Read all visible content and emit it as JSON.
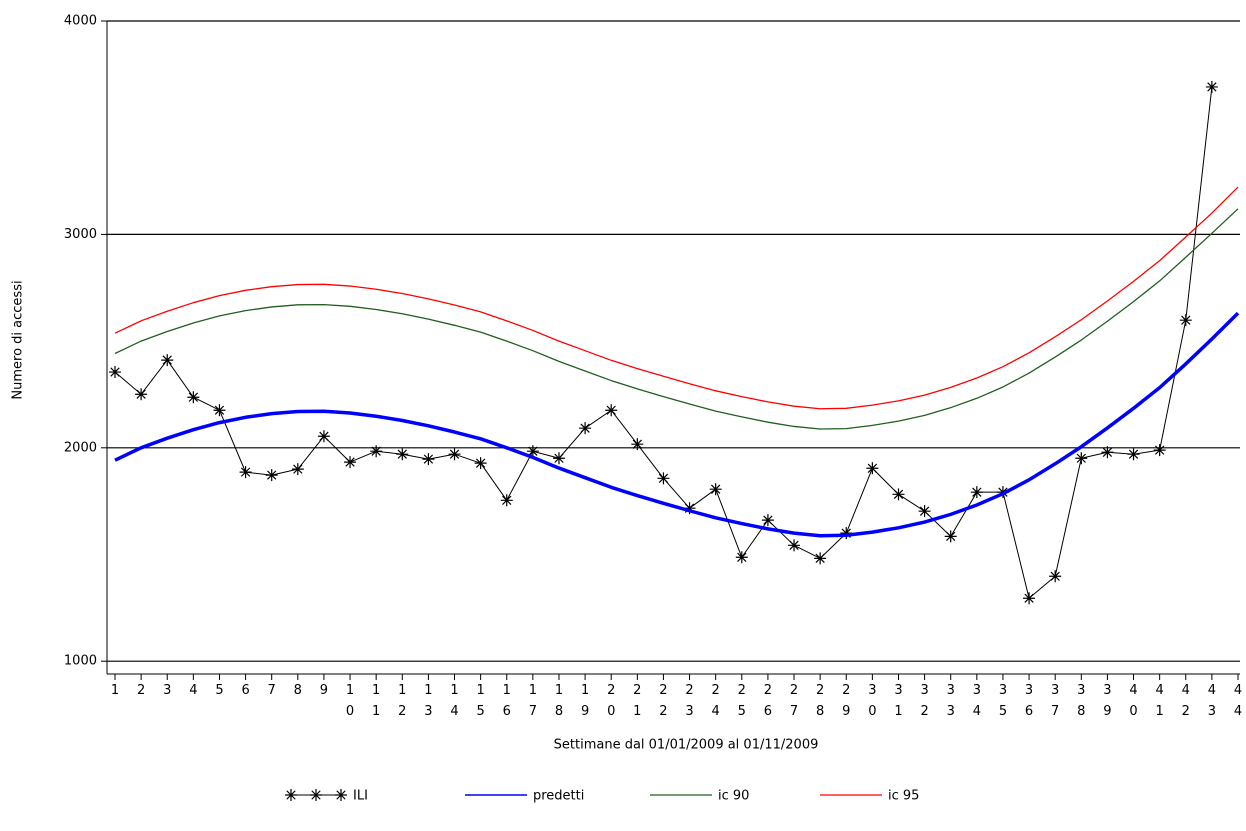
{
  "chart_data": {
    "type": "line",
    "x_label": "Settimane dal 01/01/2009 al 01/11/2009",
    "y_label": "Numero di accessi",
    "categories": [
      "1",
      "2",
      "3",
      "4",
      "5",
      "6",
      "7",
      "8",
      "9",
      "10",
      "11",
      "12",
      "13",
      "14",
      "15",
      "16",
      "17",
      "18",
      "19",
      "20",
      "21",
      "22",
      "23",
      "24",
      "25",
      "26",
      "27",
      "28",
      "29",
      "30",
      "31",
      "32",
      "33",
      "34",
      "35",
      "36",
      "37",
      "38",
      "39",
      "40",
      "41",
      "42",
      "43",
      "44"
    ],
    "series": [
      {
        "name": "ILI",
        "color": "#000000",
        "line_width": 1,
        "marker": "star",
        "values": [
          2355,
          2251,
          2411,
          2237,
          2176,
          1886,
          1872,
          1900,
          2054,
          1933,
          1984,
          1970,
          1947,
          1970,
          1928,
          1754,
          1984,
          1951,
          2092,
          2176,
          2017,
          1857,
          1717,
          1806,
          1487,
          1661,
          1543,
          1482,
          1600,
          1904,
          1782,
          1703,
          1585,
          1792,
          1792,
          1295,
          1398,
          1951,
          1979,
          1970,
          1989,
          2598,
          3691,
          null
        ]
      },
      {
        "name": "predetti",
        "color": "#0000ff",
        "line_width": 3.5,
        "values": [
          1942,
          2000,
          2045,
          2085,
          2118,
          2143,
          2160,
          2170,
          2171,
          2163,
          2148,
          2128,
          2103,
          2074,
          2042,
          2000,
          1955,
          1905,
          1860,
          1815,
          1776,
          1740,
          1705,
          1672,
          1645,
          1620,
          1600,
          1588,
          1590,
          1605,
          1625,
          1652,
          1688,
          1732,
          1785,
          1850,
          1925,
          2005,
          2093,
          2185,
          2282,
          2393,
          2510,
          2631
        ]
      },
      {
        "name": "ic 90",
        "color": "#1f5f1f",
        "line_width": 1.3,
        "values": [
          2442,
          2500,
          2545,
          2585,
          2618,
          2643,
          2660,
          2670,
          2671,
          2663,
          2648,
          2628,
          2603,
          2574,
          2542,
          2500,
          2455,
          2405,
          2360,
          2315,
          2276,
          2240,
          2205,
          2172,
          2145,
          2120,
          2100,
          2088,
          2090,
          2105,
          2125,
          2152,
          2188,
          2232,
          2285,
          2350,
          2425,
          2505,
          2593,
          2685,
          2782,
          2893,
          3005,
          3120
        ]
      },
      {
        "name": "ic 95",
        "color": "#ff0000",
        "line_width": 1.3,
        "values": [
          2537,
          2595,
          2640,
          2680,
          2713,
          2738,
          2755,
          2765,
          2766,
          2758,
          2743,
          2723,
          2698,
          2669,
          2637,
          2595,
          2550,
          2500,
          2455,
          2410,
          2371,
          2335,
          2300,
          2267,
          2240,
          2215,
          2195,
          2183,
          2185,
          2200,
          2220,
          2247,
          2283,
          2327,
          2380,
          2445,
          2520,
          2600,
          2688,
          2780,
          2877,
          2988,
          3100,
          3222
        ]
      }
    ],
    "ylim": [
      940,
      4000
    ],
    "yticks": [
      1000,
      2000,
      3000,
      4000
    ],
    "grid": true,
    "legend": "bottom"
  }
}
